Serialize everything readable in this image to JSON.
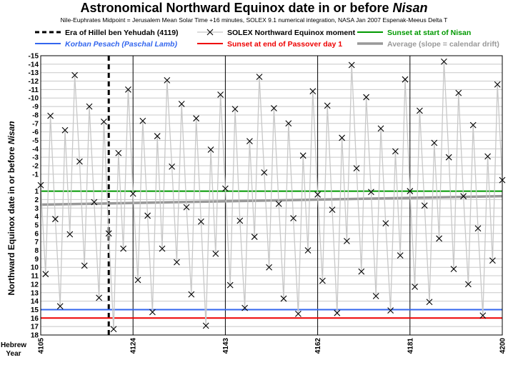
{
  "title_main": "Astronomical Northward Equinox date in or before ",
  "title_italic": "Nisan",
  "subtitle": "Nile-Euphrates Midpoint = Jerusalem Mean Solar Time +16 minutes, SOLEX 9.1 numerical integration, NASA Jan 2007 Espenak-Meeus Delta T",
  "chart_data": {
    "type": "line",
    "ylabel_main": "Northward Equinox date in or before ",
    "ylabel_italic": "Nisan",
    "xlabel_line1": "Hebrew",
    "xlabel_line2": "Year",
    "xlim": [
      4105,
      4200
    ],
    "ylim": [
      -15,
      18
    ],
    "y_axis_inverted": true,
    "x_ticks": [
      4105,
      4124,
      4143,
      4162,
      4181,
      4200
    ],
    "y_ticks": [
      -15,
      -14,
      -13,
      -12,
      -11,
      -10,
      -9,
      -8,
      -7,
      -6,
      -5,
      -4,
      -3,
      -2,
      -1,
      1,
      2,
      3,
      4,
      5,
      6,
      7,
      8,
      9,
      10,
      11,
      12,
      13,
      14,
      15,
      16,
      17,
      18
    ],
    "grid": true,
    "legend_position": "top",
    "series": [
      {
        "name": "SOLEX Northward Equinox moment",
        "color": "#c8c8c8",
        "marker": "x",
        "x": [
          4105,
          4106,
          4107,
          4108,
          4109,
          4110,
          4111,
          4112,
          4113,
          4114,
          4115,
          4116,
          4117,
          4118,
          4119,
          4120,
          4121,
          4122,
          4123,
          4124,
          4125,
          4126,
          4127,
          4128,
          4129,
          4130,
          4131,
          4132,
          4133,
          4134,
          4135,
          4136,
          4137,
          4138,
          4139,
          4140,
          4141,
          4142,
          4143,
          4144,
          4145,
          4146,
          4147,
          4148,
          4149,
          4150,
          4151,
          4152,
          4153,
          4154,
          4155,
          4156,
          4157,
          4158,
          4159,
          4160,
          4161,
          4162,
          4163,
          4164,
          4165,
          4166,
          4167,
          4168,
          4169,
          4170,
          4171,
          4172,
          4173,
          4174,
          4175,
          4176,
          4177,
          4178,
          4179,
          4180,
          4181,
          4182,
          4183,
          4184,
          4185,
          4186,
          4187,
          4188,
          4189,
          4190,
          4191,
          4192,
          4193,
          4194,
          4195,
          4196,
          4197,
          4198,
          4199,
          4200
        ],
        "y": [
          0.3,
          10.8,
          -7.9,
          4.3,
          14.6,
          -6.2,
          6.1,
          -12.7,
          -2.5,
          9.8,
          -9.0,
          2.3,
          13.6,
          -7.2,
          6.0,
          17.3,
          -3.5,
          7.8,
          -11.0,
          1.3,
          11.5,
          -7.3,
          3.9,
          15.3,
          -5.5,
          7.8,
          -12.1,
          -1.9,
          9.4,
          -9.3,
          2.9,
          13.2,
          -7.6,
          4.6,
          16.9,
          -3.9,
          8.4,
          -10.4,
          0.7,
          12.1,
          -8.7,
          4.5,
          14.8,
          -4.9,
          6.4,
          -12.5,
          -1.2,
          10.0,
          -8.8,
          2.5,
          13.7,
          -7.0,
          4.2,
          15.5,
          -3.2,
          8.0,
          -10.8,
          1.4,
          11.6,
          -9.1,
          3.2,
          15.4,
          -5.3,
          6.9,
          -13.9,
          -1.7,
          10.5,
          -10.1,
          1.1,
          13.4,
          -6.4,
          4.8,
          15.1,
          -3.7,
          8.6,
          -12.2,
          1.0,
          12.3,
          -8.5,
          2.7,
          14.1,
          -4.7,
          6.6,
          -14.3,
          -3.0,
          10.2,
          -10.6,
          1.6,
          12.0,
          -6.8,
          5.4,
          15.7,
          -3.1,
          9.2,
          -11.6,
          -0.3
        ]
      },
      {
        "name": "Average (slope = calendar drift)",
        "color": "#999999",
        "x": [
          4105,
          4200
        ],
        "y": [
          2.6,
          1.6
        ]
      }
    ],
    "reference_lines": [
      {
        "name": "Era of Hillel ben Yehudah (4119)",
        "axis": "x",
        "value": 4119,
        "color": "#000000",
        "style": "dashed"
      },
      {
        "name": "Sunset at start of Nisan",
        "axis": "y",
        "value": 1,
        "color": "#009900",
        "style": "solid"
      },
      {
        "name": "Korban Pesach (Paschal Lamb)",
        "axis": "y",
        "value": 15,
        "color": "#3366ee",
        "style": "solid"
      },
      {
        "name": "Sunset at end of Passover day 1",
        "axis": "y",
        "value": 16,
        "color": "#ee0000",
        "style": "solid"
      }
    ]
  },
  "legend": [
    {
      "label": "Era of Hillel ben Yehudah (4119)",
      "color": "#000000",
      "italic": false
    },
    {
      "label": "SOLEX Northward Equinox moment",
      "color": "#000000",
      "italic": false
    },
    {
      "label": "Sunset at start of Nisan",
      "color": "#009900",
      "italic": false
    },
    {
      "label": "Korban Pesach (Paschal Lamb)",
      "color": "#3366ee",
      "italic": true
    },
    {
      "label": "Sunset at end of Passover day 1",
      "color": "#ee0000",
      "italic": false
    },
    {
      "label": "Average (slope = calendar drift)",
      "color": "#999999",
      "italic": false
    }
  ]
}
